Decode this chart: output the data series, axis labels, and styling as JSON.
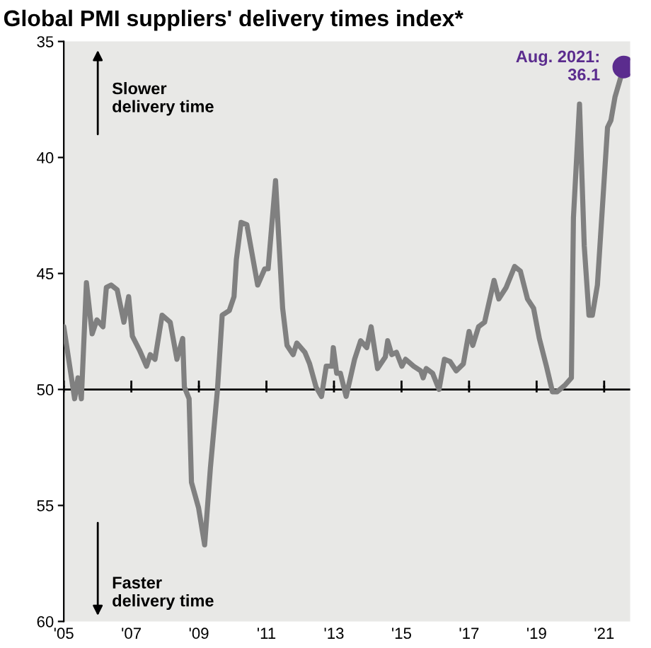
{
  "chart_data": {
    "type": "line",
    "title": "Global PMI suppliers' delivery times index*",
    "x": [
      2005.0,
      2005.32,
      2005.42,
      2005.52,
      2005.67,
      2005.84,
      2005.98,
      2006.16,
      2006.26,
      2006.4,
      2006.58,
      2006.78,
      2006.92,
      2007.03,
      2007.24,
      2007.45,
      2007.56,
      2007.7,
      2007.91,
      2008.15,
      2008.35,
      2008.52,
      2008.57,
      2008.71,
      2008.78,
      2008.99,
      2009.17,
      2009.34,
      2009.55,
      2009.69,
      2009.9,
      2010.04,
      2010.11,
      2010.25,
      2010.42,
      2010.74,
      2010.95,
      2011.05,
      2011.27,
      2011.48,
      2011.61,
      2011.79,
      2011.9,
      2012.14,
      2012.28,
      2012.47,
      2012.63,
      2012.77,
      2012.94,
      2012.98,
      2013.08,
      2013.19,
      2013.36,
      2013.61,
      2013.79,
      2013.97,
      2014.1,
      2014.29,
      2014.52,
      2014.59,
      2014.71,
      2014.85,
      2015.01,
      2015.12,
      2015.36,
      2015.57,
      2015.64,
      2015.73,
      2015.92,
      2016.11,
      2016.27,
      2016.44,
      2016.62,
      2016.83,
      2017.0,
      2017.11,
      2017.28,
      2017.46,
      2017.74,
      2017.88,
      2018.1,
      2018.35,
      2018.52,
      2018.73,
      2018.91,
      2019.08,
      2019.29,
      2019.47,
      2019.61,
      2019.85,
      2020.03,
      2020.09,
      2020.27,
      2020.41,
      2020.55,
      2020.65,
      2020.8,
      2021.1,
      2021.2,
      2021.32,
      2021.58
    ],
    "series": [
      {
        "color": "#808080",
        "values": [
          47.3,
          50.4,
          49.5,
          50.4,
          45.4,
          47.6,
          47.0,
          47.3,
          45.6,
          45.5,
          45.7,
          47.1,
          46.0,
          47.7,
          48.3,
          49.0,
          48.5,
          48.7,
          46.8,
          47.1,
          48.7,
          47.8,
          49.9,
          50.4,
          54.0,
          55.1,
          56.7,
          53.4,
          50.0,
          46.8,
          46.6,
          46.0,
          44.4,
          42.8,
          42.9,
          45.5,
          44.8,
          44.8,
          41.0,
          46.5,
          48.1,
          48.5,
          48.0,
          48.4,
          48.9,
          49.9,
          50.3,
          49.0,
          49.0,
          48.2,
          49.3,
          49.3,
          50.3,
          48.7,
          47.9,
          48.2,
          47.3,
          49.1,
          48.6,
          47.9,
          48.5,
          48.4,
          49.0,
          48.7,
          49.0,
          49.2,
          49.5,
          49.1,
          49.3,
          50.0,
          48.7,
          48.8,
          49.2,
          48.9,
          47.5,
          48.1,
          47.3,
          47.1,
          45.3,
          46.1,
          45.6,
          44.7,
          44.9,
          46.1,
          46.5,
          47.8,
          49.0,
          50.1,
          50.1,
          49.8,
          49.5,
          42.6,
          37.7,
          43.8,
          46.8,
          46.8,
          45.5,
          38.7,
          38.4,
          37.4,
          36.1
        ]
      },
      {
        "type": "scatter",
        "color": "#5b2c8e",
        "x": [
          2021.58
        ],
        "values": [
          36.1
        ]
      }
    ],
    "xlim": [
      2005,
      2021.77
    ],
    "ylim": [
      60,
      35
    ],
    "xticks": [
      {
        "value": 2005,
        "label": "'05"
      },
      {
        "value": 2007,
        "label": "'07"
      },
      {
        "value": 2009,
        "label": "'09"
      },
      {
        "value": 2011,
        "label": "'11"
      },
      {
        "value": 2013,
        "label": "'13"
      },
      {
        "value": 2015,
        "label": "'15"
      },
      {
        "value": 2017,
        "label": "'17"
      },
      {
        "value": 2019,
        "label": "'19"
      },
      {
        "value": 2021,
        "label": "'21"
      }
    ],
    "yticks": [
      35,
      40,
      45,
      50,
      55,
      60
    ],
    "ref_lines": [
      {
        "axis": "y",
        "value": 50,
        "color": "#000000"
      }
    ],
    "annotations": [
      "Slower\ndelivery time",
      "Faster\ndelivery time",
      {
        "text": "Aug. 2021:\n36.1",
        "x": 2021.58,
        "y": 36.1
      }
    ],
    "grid": false,
    "legend": false
  }
}
